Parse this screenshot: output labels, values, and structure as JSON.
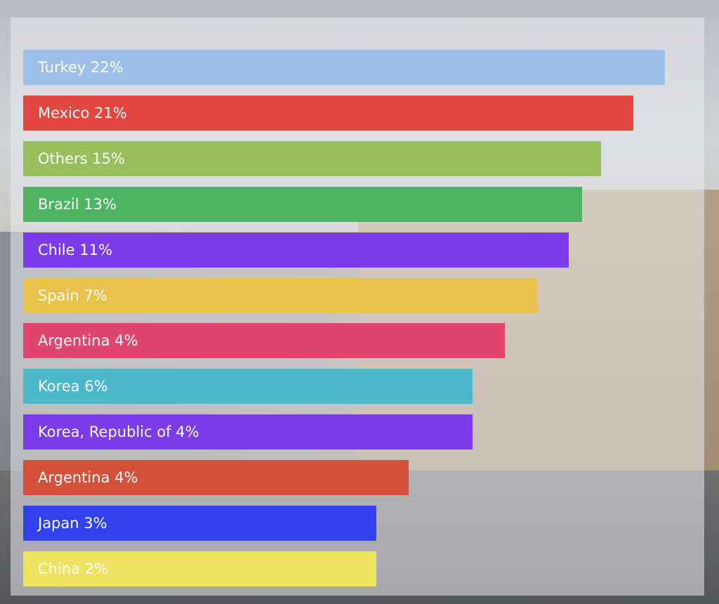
{
  "items": [
    {
      "label": "Turkey 22%",
      "color": "#9bbfe8"
    },
    {
      "label": "Mexico 21%",
      "color": "#e2463f"
    },
    {
      "label": "Others 15%",
      "color": "#97c05c"
    },
    {
      "label": "Brazil 13%",
      "color": "#4db462"
    },
    {
      "label": "Chile 11%",
      "color": "#7b3be8"
    },
    {
      "label": "Spain 7%",
      "color": "#e8c24a"
    },
    {
      "label": "Argentina 4%",
      "color": "#e0456e"
    },
    {
      "label": "Korea 6%",
      "color": "#4bb8cb"
    },
    {
      "label": "Korea, Republic of 4%",
      "color": "#7b3be8"
    },
    {
      "label": "Argentina 4%",
      "color": "#d5503a"
    },
    {
      "label": "Japan 3%",
      "color": "#2f42ee"
    },
    {
      "label": "China 2%",
      "color": "#ede35e"
    }
  ]
}
